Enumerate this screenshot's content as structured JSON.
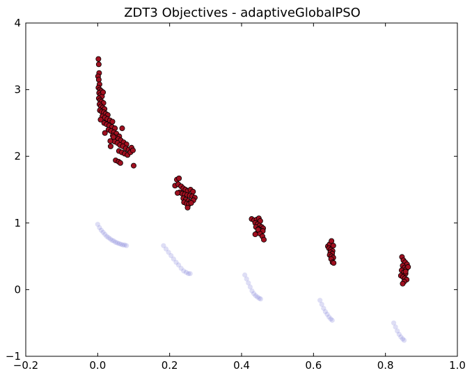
{
  "chart_data": {
    "type": "scatter",
    "title": "ZDT3 Objectives - adaptiveGlobalPSO",
    "xlabel": "",
    "ylabel": "",
    "xlim": [
      -0.2,
      1.0
    ],
    "ylim": [
      -1,
      4
    ],
    "xticks": [
      -0.2,
      0.0,
      0.2,
      0.4,
      0.6,
      0.8,
      1.0
    ],
    "xtick_labels": [
      "−0.2",
      "0.0",
      "0.2",
      "0.4",
      "0.6",
      "0.8",
      "1.0"
    ],
    "yticks": [
      -1,
      0,
      1,
      2,
      3,
      4
    ],
    "ytick_labels": [
      "−1",
      "0",
      "1",
      "2",
      "3",
      "4"
    ],
    "grid": false,
    "legend": false,
    "series": [
      {
        "color": "#6a6ad0",
        "style": "faint-circles",
        "points": [
          [
            0.0,
            0.98
          ],
          [
            0.005,
            0.93
          ],
          [
            0.01,
            0.89
          ],
          [
            0.015,
            0.86
          ],
          [
            0.02,
            0.83
          ],
          [
            0.025,
            0.8
          ],
          [
            0.03,
            0.78
          ],
          [
            0.035,
            0.76
          ],
          [
            0.04,
            0.74
          ],
          [
            0.045,
            0.73
          ],
          [
            0.05,
            0.71
          ],
          [
            0.055,
            0.7
          ],
          [
            0.06,
            0.69
          ],
          [
            0.065,
            0.68
          ],
          [
            0.07,
            0.67
          ],
          [
            0.075,
            0.67
          ],
          [
            0.08,
            0.66
          ],
          [
            0.183,
            0.66
          ],
          [
            0.19,
            0.61
          ],
          [
            0.197,
            0.56
          ],
          [
            0.204,
            0.51
          ],
          [
            0.211,
            0.46
          ],
          [
            0.218,
            0.41
          ],
          [
            0.225,
            0.37
          ],
          [
            0.232,
            0.32
          ],
          [
            0.239,
            0.28
          ],
          [
            0.246,
            0.26
          ],
          [
            0.252,
            0.24
          ],
          [
            0.257,
            0.24
          ],
          [
            0.409,
            0.22
          ],
          [
            0.414,
            0.16
          ],
          [
            0.419,
            0.1
          ],
          [
            0.424,
            0.04
          ],
          [
            0.429,
            -0.02
          ],
          [
            0.434,
            -0.06
          ],
          [
            0.439,
            -0.09
          ],
          [
            0.444,
            -0.11
          ],
          [
            0.449,
            -0.13
          ],
          [
            0.453,
            -0.14
          ],
          [
            0.618,
            -0.16
          ],
          [
            0.623,
            -0.22
          ],
          [
            0.628,
            -0.28
          ],
          [
            0.633,
            -0.33
          ],
          [
            0.638,
            -0.37
          ],
          [
            0.643,
            -0.41
          ],
          [
            0.648,
            -0.44
          ],
          [
            0.652,
            -0.46
          ],
          [
            0.823,
            -0.5
          ],
          [
            0.828,
            -0.56
          ],
          [
            0.833,
            -0.62
          ],
          [
            0.838,
            -0.67
          ],
          [
            0.843,
            -0.71
          ],
          [
            0.848,
            -0.74
          ],
          [
            0.852,
            -0.76
          ]
        ]
      },
      {
        "color": "#a01020",
        "style": "filled-circles",
        "points": [
          [
            0.002,
            3.46
          ],
          [
            0.003,
            3.38
          ],
          [
            0.004,
            3.25
          ],
          [
            0.001,
            3.2
          ],
          [
            0.003,
            3.15
          ],
          [
            0.005,
            3.08
          ],
          [
            0.002,
            3.03
          ],
          [
            0.006,
            3.0
          ],
          [
            0.01,
            2.98
          ],
          [
            0.004,
            2.95
          ],
          [
            0.008,
            2.92
          ],
          [
            0.012,
            2.9
          ],
          [
            0.015,
            2.96
          ],
          [
            0.003,
            2.87
          ],
          [
            0.007,
            2.84
          ],
          [
            0.011,
            2.82
          ],
          [
            0.016,
            2.8
          ],
          [
            0.005,
            2.78
          ],
          [
            0.009,
            2.75
          ],
          [
            0.014,
            2.73
          ],
          [
            0.019,
            2.71
          ],
          [
            0.006,
            2.69
          ],
          [
            0.011,
            2.67
          ],
          [
            0.017,
            2.66
          ],
          [
            0.022,
            2.64
          ],
          [
            0.028,
            2.62
          ],
          [
            0.013,
            2.6
          ],
          [
            0.02,
            2.58
          ],
          [
            0.027,
            2.56
          ],
          [
            0.034,
            2.54
          ],
          [
            0.041,
            2.52
          ],
          [
            0.008,
            2.55
          ],
          [
            0.018,
            2.5
          ],
          [
            0.025,
            2.48
          ],
          [
            0.032,
            2.46
          ],
          [
            0.04,
            2.44
          ],
          [
            0.048,
            2.42
          ],
          [
            0.03,
            2.4
          ],
          [
            0.037,
            2.38
          ],
          [
            0.045,
            2.36
          ],
          [
            0.052,
            2.34
          ],
          [
            0.06,
            2.3
          ],
          [
            0.068,
            2.42
          ],
          [
            0.042,
            2.31
          ],
          [
            0.05,
            2.28
          ],
          [
            0.057,
            2.26
          ],
          [
            0.064,
            2.24
          ],
          [
            0.072,
            2.21
          ],
          [
            0.08,
            2.18
          ],
          [
            0.047,
            2.22
          ],
          [
            0.055,
            2.2
          ],
          [
            0.062,
            2.17
          ],
          [
            0.07,
            2.15
          ],
          [
            0.078,
            2.12
          ],
          [
            0.086,
            2.1
          ],
          [
            0.094,
            2.13
          ],
          [
            0.036,
            2.15
          ],
          [
            0.059,
            2.08
          ],
          [
            0.067,
            2.06
          ],
          [
            0.075,
            2.04
          ],
          [
            0.083,
            2.02
          ],
          [
            0.091,
            2.06
          ],
          [
            0.05,
            1.94
          ],
          [
            0.058,
            1.92
          ],
          [
            0.063,
            1.9
          ],
          [
            0.098,
            2.09
          ],
          [
            0.1,
            1.86
          ],
          [
            0.02,
            2.35
          ],
          [
            0.035,
            2.23
          ],
          [
            0.044,
            2.29
          ],
          [
            0.22,
            1.65
          ],
          [
            0.226,
            1.67
          ],
          [
            0.215,
            1.56
          ],
          [
            0.224,
            1.58
          ],
          [
            0.232,
            1.55
          ],
          [
            0.238,
            1.52
          ],
          [
            0.244,
            1.5
          ],
          [
            0.25,
            1.48
          ],
          [
            0.258,
            1.5
          ],
          [
            0.265,
            1.47
          ],
          [
            0.228,
            1.46
          ],
          [
            0.235,
            1.44
          ],
          [
            0.242,
            1.43
          ],
          [
            0.249,
            1.42
          ],
          [
            0.256,
            1.41
          ],
          [
            0.263,
            1.4
          ],
          [
            0.27,
            1.38
          ],
          [
            0.222,
            1.45
          ],
          [
            0.238,
            1.37
          ],
          [
            0.245,
            1.35
          ],
          [
            0.252,
            1.33
          ],
          [
            0.259,
            1.32
          ],
          [
            0.266,
            1.34
          ],
          [
            0.24,
            1.31
          ],
          [
            0.247,
            1.29
          ],
          [
            0.253,
            1.28
          ],
          [
            0.26,
            1.3
          ],
          [
            0.25,
            1.23
          ],
          [
            0.428,
            1.06
          ],
          [
            0.435,
            1.04
          ],
          [
            0.442,
            1.05
          ],
          [
            0.448,
            1.07
          ],
          [
            0.452,
            1.03
          ],
          [
            0.438,
            1.0
          ],
          [
            0.444,
            0.98
          ],
          [
            0.45,
            0.96
          ],
          [
            0.456,
            0.94
          ],
          [
            0.46,
            0.92
          ],
          [
            0.44,
            0.94
          ],
          [
            0.447,
            0.91
          ],
          [
            0.453,
            0.89
          ],
          [
            0.459,
            0.88
          ],
          [
            0.445,
            0.86
          ],
          [
            0.451,
            0.84
          ],
          [
            0.438,
            0.83
          ],
          [
            0.458,
            0.8
          ],
          [
            0.462,
            0.75
          ],
          [
            0.446,
            0.9
          ],
          [
            0.64,
            0.65
          ],
          [
            0.645,
            0.68
          ],
          [
            0.65,
            0.73
          ],
          [
            0.655,
            0.66
          ],
          [
            0.643,
            0.62
          ],
          [
            0.648,
            0.6
          ],
          [
            0.653,
            0.58
          ],
          [
            0.647,
            0.56
          ],
          [
            0.652,
            0.54
          ],
          [
            0.645,
            0.52
          ],
          [
            0.65,
            0.5
          ],
          [
            0.655,
            0.48
          ],
          [
            0.649,
            0.46
          ],
          [
            0.653,
            0.41
          ],
          [
            0.656,
            0.4
          ],
          [
            0.846,
            0.49
          ],
          [
            0.85,
            0.44
          ],
          [
            0.855,
            0.41
          ],
          [
            0.86,
            0.38
          ],
          [
            0.848,
            0.36
          ],
          [
            0.853,
            0.33
          ],
          [
            0.858,
            0.31
          ],
          [
            0.863,
            0.34
          ],
          [
            0.845,
            0.29
          ],
          [
            0.851,
            0.26
          ],
          [
            0.856,
            0.24
          ],
          [
            0.843,
            0.21
          ],
          [
            0.849,
            0.19
          ],
          [
            0.854,
            0.17
          ],
          [
            0.859,
            0.15
          ],
          [
            0.852,
            0.12
          ],
          [
            0.848,
            0.09
          ],
          [
            0.856,
            0.27
          ]
        ]
      }
    ]
  }
}
